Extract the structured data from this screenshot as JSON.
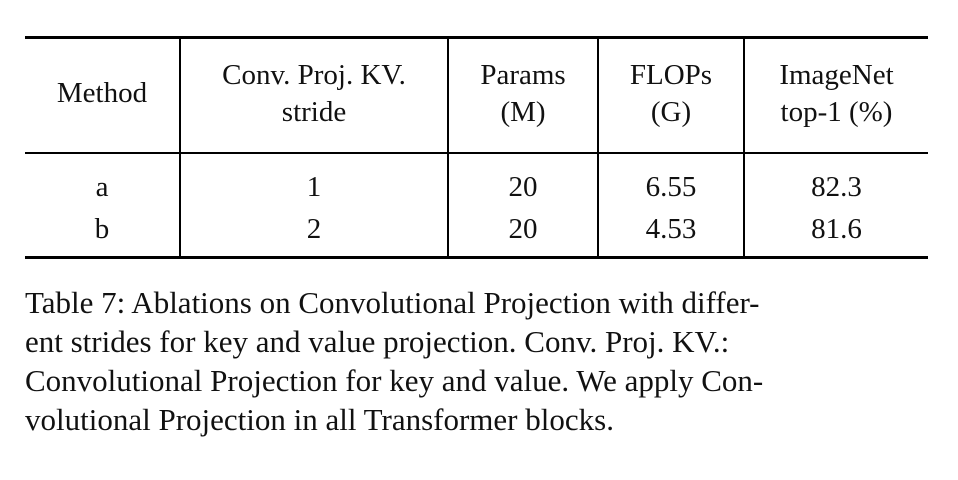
{
  "table": {
    "headers": [
      {
        "line1": "Method",
        "line2": ""
      },
      {
        "line1": "Conv. Proj. KV.",
        "line2": "stride"
      },
      {
        "line1": "Params",
        "line2": "(M)"
      },
      {
        "line1": "FLOPs",
        "line2": "(G)"
      },
      {
        "line1": "ImageNet",
        "line2": "top-1 (%)"
      }
    ],
    "rows": [
      {
        "method": "a",
        "stride": "1",
        "params": "20",
        "flops": "6.55",
        "top1": "82.3"
      },
      {
        "method": "b",
        "stride": "2",
        "params": "20",
        "flops": "4.53",
        "top1": "81.6"
      }
    ]
  },
  "caption": {
    "text": "Table 7: Ablations on Convolutional Projection with different strides for key and value projection. Conv. Proj. KV.: Convolutional Projection for key and value. We apply Convolutional Projection in all Transformer blocks.",
    "line1": "Table 7: Ablations on Convolutional Projection with differ-",
    "line2": "ent strides for key and value projection. Conv. Proj. KV.:",
    "line3": "Convolutional Projection for key and value. We apply Con-",
    "line4": "volutional Projection in all Transformer blocks."
  }
}
